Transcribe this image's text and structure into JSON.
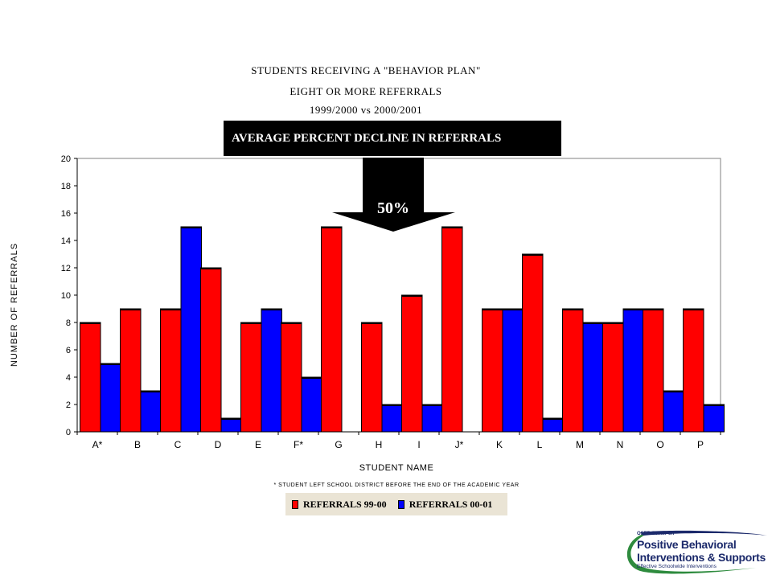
{
  "titles": {
    "line1": "STUDENTS RECEIVING A \"BEHAVIOR PLAN\"",
    "line2": "EIGHT OR MORE REFERRALS",
    "line3": "1999/2000 vs 2000/2001"
  },
  "banner": "AVERAGE PERCENT DECLINE IN REFERRALS",
  "callout": "50%",
  "footnote": "* STUDENT LEFT SCHOOL DISTRICT BEFORE THE END OF THE ACADEMIC YEAR",
  "logo": {
    "line1": "OSEP Center on",
    "line2": "Positive Behavioral",
    "line3": "Interventions & Supports",
    "line4": "Effective Schoolwide Interventions"
  },
  "colors": {
    "series_1": "#ff0000",
    "series_2": "#0000ff",
    "plot_background": "#ffffff",
    "legend_background": "#eae4d5"
  },
  "chart_data": {
    "type": "bar",
    "xlabel": "STUDENT NAME",
    "ylabel": "NUMBER OF REFERRALS",
    "ylim": [
      0,
      20
    ],
    "yticks": [
      0,
      2,
      4,
      6,
      8,
      10,
      12,
      14,
      16,
      18,
      20
    ],
    "grid": false,
    "legend_position": "bottom",
    "categories": [
      "A*",
      "B",
      "C",
      "D",
      "E",
      "F*",
      "G",
      "H",
      "I",
      "J*",
      "K",
      "L",
      "M",
      "N",
      "O",
      "P"
    ],
    "series": [
      {
        "name": "REFERRALS 99-00",
        "values": [
          8,
          9,
          9,
          12,
          8,
          8,
          15,
          8,
          10,
          15,
          9,
          13,
          9,
          8,
          9,
          9
        ]
      },
      {
        "name": "REFERRALS 00-01",
        "values": [
          5,
          3,
          15,
          1,
          9,
          4,
          0,
          2,
          2,
          0,
          9,
          1,
          8,
          9,
          3,
          2
        ]
      }
    ]
  }
}
